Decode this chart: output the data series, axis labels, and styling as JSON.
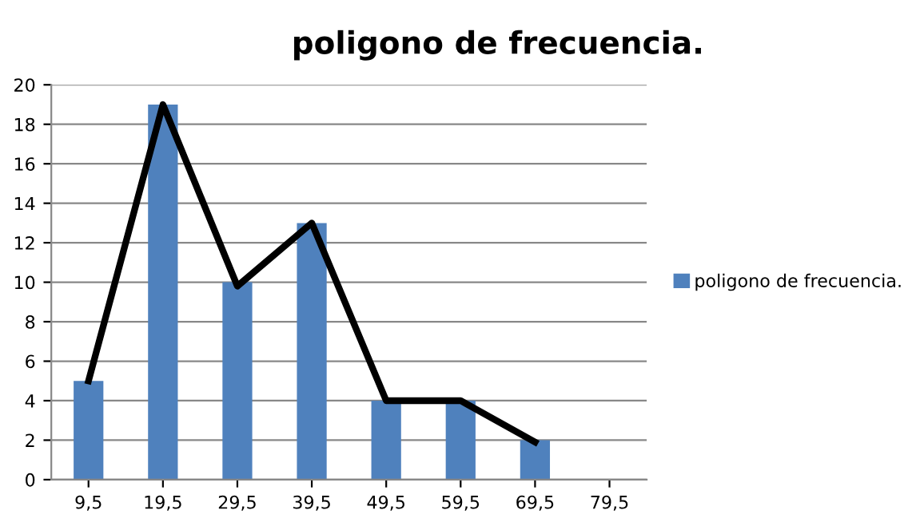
{
  "chart_data": {
    "type": "bar",
    "title": "poligono de frecuencia.",
    "categories": [
      "9,5",
      "19,5",
      "29,5",
      "39,5",
      "49,5",
      "59,5",
      "69,5",
      "79,5"
    ],
    "series": [
      {
        "name": "poligono de frecuencia.",
        "color": "#4f81bd",
        "values": [
          5,
          19,
          10,
          13,
          4,
          4,
          2,
          null
        ]
      },
      {
        "type": "line",
        "color": "#000000",
        "values": [
          5,
          19,
          9.8,
          13,
          4,
          4,
          1.9,
          null
        ]
      }
    ],
    "ylim": [
      0,
      20
    ],
    "yticks": [
      0,
      2,
      4,
      6,
      8,
      10,
      12,
      14,
      16,
      18,
      20
    ],
    "grid": "y",
    "legend": "right",
    "marker": "none",
    "line_style": "solid"
  }
}
